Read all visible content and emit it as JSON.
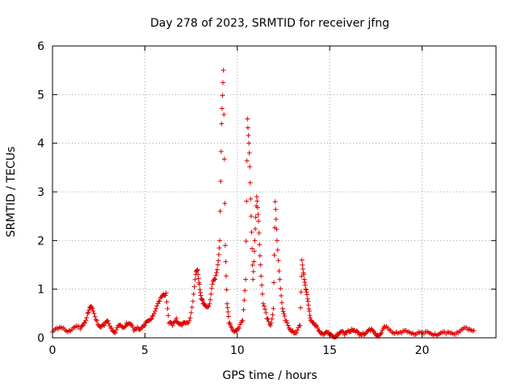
{
  "chart_data": {
    "type": "scatter",
    "title": "Day 278 of 2023, SRMTID for receiver jfng",
    "xlabel": "GPS time / hours",
    "ylabel": "SRMTID / TECUs",
    "xlim": [
      0,
      24
    ],
    "ylim": [
      0,
      6
    ],
    "xticks": [
      0,
      5,
      10,
      15,
      20
    ],
    "yticks": [
      0,
      1,
      2,
      3,
      4,
      5,
      6
    ],
    "grid": true,
    "marker": "plus",
    "color": "#e00000",
    "series": [
      {
        "name": "SRMTID",
        "segments": [
          {
            "x": [
              0.0,
              0.3,
              0.6,
              0.9,
              1.2,
              1.5,
              1.7,
              1.9,
              2.05,
              2.2,
              2.4,
              2.6,
              2.8,
              3.0,
              3.2,
              3.4,
              3.6,
              3.8,
              4.0,
              4.2,
              4.4,
              4.6,
              4.8,
              5.0,
              5.2,
              5.4,
              5.6,
              5.8,
              6.0,
              6.15,
              6.3,
              6.5,
              6.7,
              6.85,
              7.0,
              7.2,
              7.4,
              7.6,
              7.75,
              7.85,
              7.95,
              8.05,
              8.15,
              8.3,
              8.5,
              8.65,
              8.8,
              8.95,
              9.05,
              9.15,
              9.25,
              9.35,
              9.45,
              9.55,
              9.7,
              9.9,
              10.1,
              10.3,
              10.45,
              10.55,
              10.65,
              10.75,
              10.85,
              10.95,
              11.05,
              11.15,
              11.25,
              11.4,
              11.6,
              11.8,
              11.95,
              12.05,
              12.15,
              12.3,
              12.45,
              12.6,
              12.8,
              13.0,
              13.2,
              13.4,
              13.5,
              13.6,
              13.7,
              13.8,
              13.9,
              14.0,
              14.2,
              14.4,
              14.6,
              14.8,
              15.0,
              15.2,
              15.4,
              15.6,
              15.8,
              16.0,
              16.2,
              16.4,
              16.6,
              16.8,
              17.0,
              17.2,
              17.4,
              17.6,
              17.8,
              18.0,
              18.3,
              18.6,
              18.9,
              19.2,
              19.5,
              19.8,
              20.1,
              20.4,
              20.7,
              21.0,
              21.3,
              21.6,
              21.9,
              22.2,
              22.5,
              22.8
            ],
            "y": [
              0.12,
              0.18,
              0.2,
              0.15,
              0.22,
              0.18,
              0.3,
              0.5,
              0.63,
              0.55,
              0.35,
              0.22,
              0.25,
              0.35,
              0.2,
              0.1,
              0.25,
              0.22,
              0.3,
              0.28,
              0.15,
              0.22,
              0.2,
              0.25,
              0.35,
              0.45,
              0.6,
              0.75,
              0.9,
              0.92,
              0.3,
              0.25,
              0.4,
              0.3,
              0.25,
              0.3,
              0.35,
              0.75,
              1.3,
              1.4,
              1.1,
              0.8,
              0.7,
              0.65,
              0.7,
              1.1,
              1.2,
              1.5,
              2.0,
              4.4,
              5.5,
              1.9,
              0.7,
              0.3,
              0.2,
              0.15,
              0.2,
              0.35,
              1.2,
              4.5,
              3.8,
              2.5,
              1.2,
              2.0,
              2.9,
              2.4,
              1.5,
              0.7,
              0.4,
              0.25,
              0.6,
              2.8,
              2.0,
              1.2,
              0.6,
              0.35,
              0.2,
              0.15,
              0.1,
              0.25,
              1.6,
              1.3,
              1.0,
              0.8,
              0.55,
              0.35,
              0.25,
              0.15,
              0.1,
              0.12,
              0.05,
              0.02,
              0.08,
              0.12,
              0.06,
              0.15,
              0.18,
              0.12,
              0.06,
              0.1,
              0.12,
              0.15,
              0.12,
              0.06,
              0.1,
              0.22,
              0.15,
              0.12,
              0.1,
              0.12,
              0.1,
              0.12,
              0.08,
              0.1,
              0.08,
              0.1,
              0.08,
              0.1,
              0.12,
              0.18,
              0.16,
              0.15
            ]
          }
        ]
      }
    ]
  }
}
